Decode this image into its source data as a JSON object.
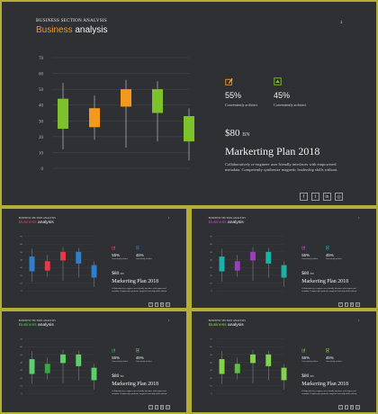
{
  "common": {
    "eyebrow": "BUSINESS SECTION ANALYSIS",
    "title_word1": "Business",
    "title_word2": "analysis",
    "page_number": "1",
    "y_ticks": [
      "70",
      "60",
      "50",
      "40",
      "30",
      "20",
      "10",
      "0"
    ],
    "feature_1": {
      "value": "55%",
      "caption": "Conveniently architect"
    },
    "feature_2": {
      "value": "45%",
      "caption": "Conveniently architect"
    },
    "price_value": "$80",
    "price_unit": "BN",
    "plan_title": "Markerting Plan 2018",
    "description": "Collaboratively re-engineer user friendly interfaces with empowered metadata. Competently synthesize magnetic leadership skills without.",
    "social_icons": [
      {
        "name": "facebook-icon",
        "glyph": "f"
      },
      {
        "name": "twitter-icon",
        "glyph": "t"
      },
      {
        "name": "linkedin-icon",
        "glyph": "in"
      },
      {
        "name": "instagram-icon",
        "glyph": "◎"
      }
    ]
  },
  "chart_data": {
    "type": "candlestick",
    "y_range": [
      0,
      70
    ],
    "y_ticks": [
      0,
      10,
      20,
      30,
      40,
      50,
      60,
      70
    ],
    "grid": true,
    "candles": [
      {
        "low": 12,
        "open": 25,
        "close": 44,
        "high": 54
      },
      {
        "low": 18,
        "open": 26,
        "close": 38,
        "high": 46
      },
      {
        "low": 13,
        "open": 39,
        "close": 50,
        "high": 56
      },
      {
        "low": 17,
        "open": 35,
        "close": 50,
        "high": 55
      },
      {
        "low": 5,
        "open": 17,
        "close": 33,
        "high": 38
      }
    ]
  },
  "themes": [
    {
      "name": "main",
      "accent": "#f39a1e",
      "candle_colors": [
        "#7dc22b",
        "#f39a1e",
        "#f39a1e",
        "#7dc22b",
        "#7dc22b"
      ],
      "icon1_color": "#f39a1e",
      "icon2_color": "#7dc22b"
    },
    {
      "name": "blue-red",
      "accent": "#e8394b",
      "candle_colors": [
        "#2f7fd0",
        "#e8394b",
        "#e8394b",
        "#2f7fd0",
        "#2f7fd0"
      ],
      "icon1_color": "#e8394b",
      "icon2_color": "#2f7fd0"
    },
    {
      "name": "teal-purple",
      "accent": "#d03ad8",
      "candle_colors": [
        "#19b3a7",
        "#9b3ec0",
        "#9b3ec0",
        "#19b3a7",
        "#19b3a7"
      ],
      "icon1_color": "#d03ad8",
      "icon2_color": "#19b3a7"
    },
    {
      "name": "green",
      "accent": "#4fc04a",
      "candle_colors": [
        "#5dcf6b",
        "#38a845",
        "#5dcf6b",
        "#5dcf6b",
        "#5dcf6b"
      ],
      "icon1_color": "#38a845",
      "icon2_color": "#5dcf6b"
    },
    {
      "name": "light-green",
      "accent": "#82cf3f",
      "candle_colors": [
        "#82d44a",
        "#5fbf40",
        "#82d44a",
        "#82d44a",
        "#82d44a"
      ],
      "icon1_color": "#5fbf40",
      "icon2_color": "#82d44a"
    }
  ]
}
